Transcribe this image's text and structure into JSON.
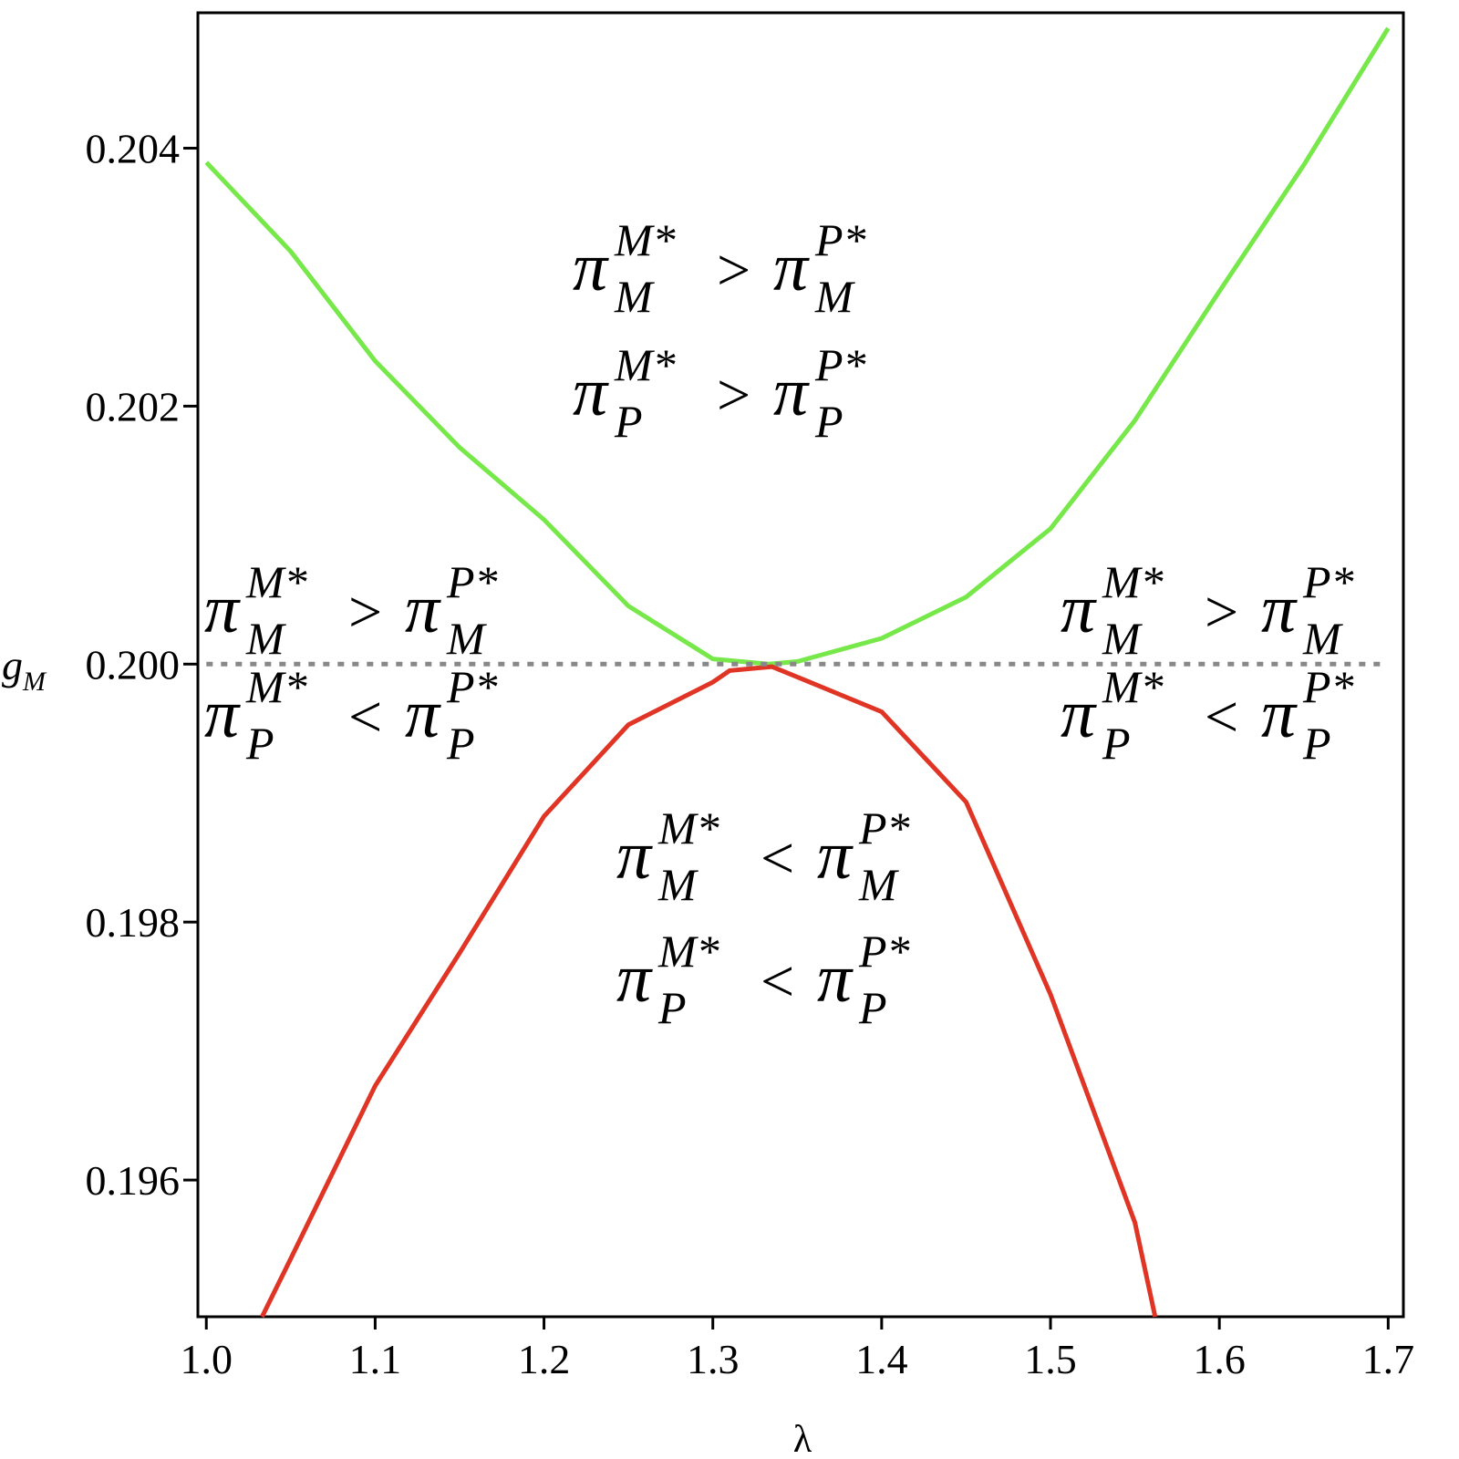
{
  "chart_data": {
    "type": "line",
    "xlabel": "λ",
    "ylabel": {
      "text": "g",
      "sub": "M"
    },
    "xlim": [
      0.995,
      1.709
    ],
    "ylim": [
      0.19494,
      0.20505
    ],
    "xticks": [
      {
        "value": 1,
        "label": "1.0"
      },
      1.1,
      1.2,
      1.3,
      1.4,
      1.5,
      1.6,
      1.7
    ],
    "yticks": [
      0.196,
      0.198,
      {
        "value": 0.2,
        "label": "0.200"
      },
      0.202,
      0.204
    ],
    "series": [
      {
        "color": "#77e84a",
        "style": "solid",
        "x": [
          1.0,
          1.05,
          1.1,
          1.15,
          1.2,
          1.25,
          1.3,
          1.333,
          1.35,
          1.4,
          1.45,
          1.5,
          1.55,
          1.6,
          1.65,
          1.7
        ],
        "values": [
          0.20389,
          0.2032,
          0.20235,
          0.20168,
          0.20112,
          0.20045,
          0.20004,
          0.2,
          0.20002,
          0.2002,
          0.20052,
          0.20105,
          0.20189,
          0.20289,
          0.20387,
          0.20493
        ]
      },
      {
        "color": "#e03424",
        "style": "solid",
        "x": [
          1.033,
          1.05,
          1.1,
          1.15,
          1.2,
          1.25,
          1.3,
          1.31,
          1.335,
          1.35,
          1.4,
          1.45,
          1.5,
          1.55,
          1.562
        ],
        "values": [
          0.19494,
          0.19539,
          0.19673,
          0.19776,
          0.19882,
          0.19953,
          0.19986,
          0.19995,
          0.19998,
          0.1999,
          0.19963,
          0.19893,
          0.19744,
          0.19567,
          0.19494
        ]
      },
      {
        "color": "#888888",
        "style": "dotted",
        "x": [
          1.0,
          1.7
        ],
        "values": [
          0.2,
          0.2
        ]
      }
    ],
    "annotations": [
      {
        "lines": [
          {
            "symbol": "π",
            "sub": "M",
            "sup": "M*",
            "op": ">",
            "rhs_symbol": "π",
            "rhs_sub": "M",
            "rhs_sup": "P*"
          },
          {
            "symbol": "π",
            "sub": "P",
            "sup": "M*",
            "op": ">",
            "rhs_symbol": "π",
            "rhs_sub": "P",
            "rhs_sup": "P*"
          }
        ]
      },
      {
        "lines": [
          {
            "symbol": "π",
            "sub": "M",
            "sup": "M*",
            "op": ">",
            "rhs_symbol": "π",
            "rhs_sub": "M",
            "rhs_sup": "P*"
          },
          {
            "symbol": "π",
            "sub": "P",
            "sup": "M*",
            "op": "<",
            "rhs_symbol": "π",
            "rhs_sub": "P",
            "rhs_sup": "P*"
          }
        ]
      },
      {
        "lines": [
          {
            "symbol": "π",
            "sub": "M",
            "sup": "M*",
            "op": ">",
            "rhs_symbol": "π",
            "rhs_sub": "M",
            "rhs_sup": "P*"
          },
          {
            "symbol": "π",
            "sub": "P",
            "sup": "M*",
            "op": "<",
            "rhs_symbol": "π",
            "rhs_sub": "P",
            "rhs_sup": "P*"
          }
        ]
      },
      {
        "lines": [
          {
            "symbol": "π",
            "sub": "M",
            "sup": "M*",
            "op": "<",
            "rhs_symbol": "π",
            "rhs_sub": "M",
            "rhs_sup": "P*"
          },
          {
            "symbol": "π",
            "sub": "P",
            "sup": "M*",
            "op": "<",
            "rhs_symbol": "π",
            "rhs_sub": "P",
            "rhs_sup": "P*"
          }
        ]
      }
    ]
  }
}
